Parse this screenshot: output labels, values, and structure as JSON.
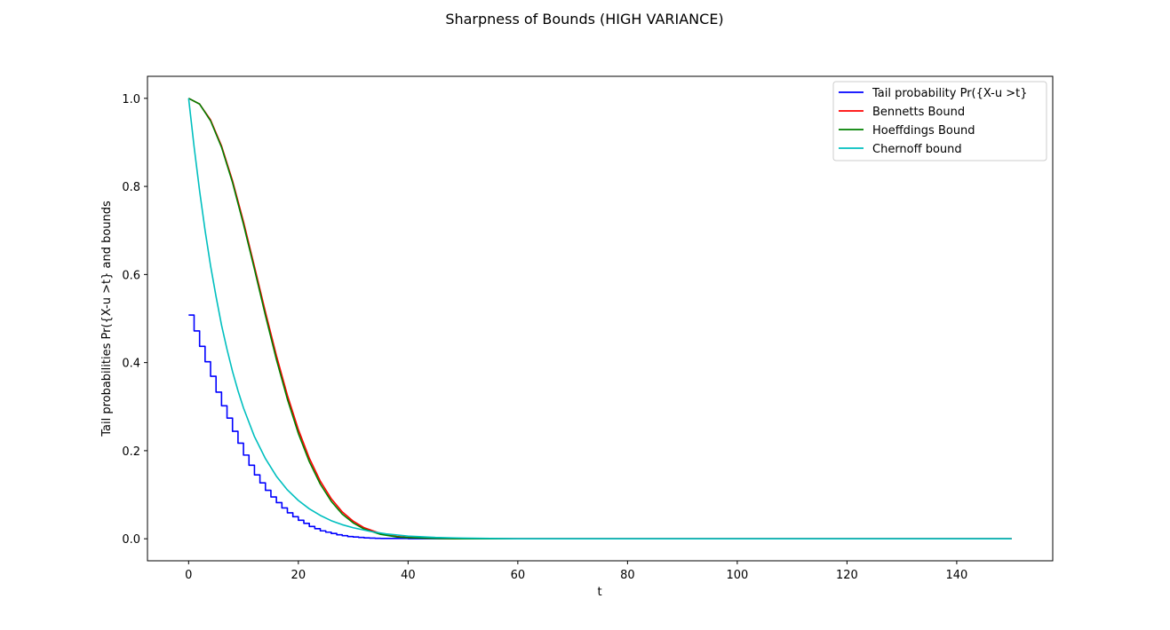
{
  "chart_data": {
    "type": "line",
    "title": "Sharpness of Bounds (HIGH VARIANCE)",
    "xlabel": "t",
    "ylabel": "Tail probabilities Pr({X-u >t} and bounds",
    "xlim": [
      -7.5,
      157.5
    ],
    "ylim": [
      -0.05,
      1.05
    ],
    "xticks": [
      0,
      20,
      40,
      60,
      80,
      100,
      120,
      140
    ],
    "yticks": [
      0.0,
      0.2,
      0.4,
      0.6,
      0.8,
      1.0
    ],
    "xtick_labels": [
      "0",
      "20",
      "40",
      "60",
      "80",
      "100",
      "120",
      "140"
    ],
    "ytick_labels": [
      "0.0",
      "0.2",
      "0.4",
      "0.6",
      "0.8",
      "1.0"
    ],
    "grid": false,
    "legend_position": "top-right",
    "series": [
      {
        "name": "Tail probability Pr({X-u >t}",
        "color": "#0000ff",
        "step": true,
        "x": [
          0,
          1,
          2,
          3,
          4,
          5,
          6,
          7,
          8,
          9,
          10,
          11,
          12,
          13,
          14,
          15,
          16,
          17,
          18,
          19,
          20,
          21,
          22,
          23,
          24,
          25,
          26,
          27,
          28,
          29,
          30,
          31,
          32,
          33,
          34,
          35,
          40,
          50,
          60,
          80,
          100,
          120,
          150
        ],
        "y": [
          0.508,
          0.472,
          0.437,
          0.402,
          0.369,
          0.333,
          0.302,
          0.274,
          0.244,
          0.217,
          0.19,
          0.167,
          0.145,
          0.127,
          0.11,
          0.095,
          0.082,
          0.07,
          0.059,
          0.05,
          0.042,
          0.035,
          0.028,
          0.023,
          0.018,
          0.015,
          0.012,
          0.009,
          0.007,
          0.005,
          0.004,
          0.003,
          0.002,
          0.0015,
          0.001,
          0.0008,
          0.0003,
          0.0,
          0.0,
          0.0,
          0.0,
          0.0,
          0.0
        ]
      },
      {
        "name": "Bennetts Bound",
        "color": "#ff0000",
        "step": false,
        "x": [
          0,
          2,
          4,
          6,
          8,
          10,
          12,
          14,
          16,
          18,
          20,
          22,
          24,
          26,
          28,
          30,
          32,
          35,
          38,
          40,
          45,
          50,
          60,
          80,
          100,
          120,
          150
        ],
        "y": [
          1.0,
          0.987,
          0.951,
          0.892,
          0.813,
          0.72,
          0.618,
          0.515,
          0.416,
          0.326,
          0.248,
          0.183,
          0.131,
          0.091,
          0.061,
          0.04,
          0.025,
          0.012,
          0.005,
          0.003,
          0.001,
          0.0,
          0.0,
          0.0,
          0.0,
          0.0,
          0.0
        ]
      },
      {
        "name": "Hoeffdings Bound",
        "color": "#008000",
        "step": false,
        "x": [
          0,
          2,
          4,
          6,
          8,
          10,
          12,
          14,
          16,
          18,
          20,
          22,
          24,
          26,
          28,
          30,
          32,
          35,
          38,
          40,
          45,
          50,
          60,
          80,
          100,
          120,
          150
        ],
        "y": [
          1.0,
          0.987,
          0.949,
          0.889,
          0.809,
          0.714,
          0.612,
          0.507,
          0.407,
          0.317,
          0.239,
          0.175,
          0.124,
          0.085,
          0.056,
          0.036,
          0.022,
          0.01,
          0.004,
          0.0025,
          0.0007,
          0.0,
          0.0,
          0.0,
          0.0,
          0.0,
          0.0
        ]
      },
      {
        "name": "Chernoff bound",
        "color": "#00bfbf",
        "step": false,
        "x": [
          0,
          1,
          2,
          3,
          4,
          5,
          6,
          7,
          8,
          9,
          10,
          12,
          14,
          16,
          18,
          20,
          22,
          24,
          26,
          28,
          30,
          33,
          36,
          40,
          45,
          50,
          60,
          80,
          100,
          120,
          150
        ],
        "y": [
          1.0,
          0.89,
          0.79,
          0.7,
          0.62,
          0.55,
          0.485,
          0.43,
          0.38,
          0.336,
          0.297,
          0.232,
          0.182,
          0.142,
          0.111,
          0.087,
          0.068,
          0.053,
          0.041,
          0.032,
          0.025,
          0.017,
          0.011,
          0.006,
          0.003,
          0.0015,
          0.0,
          0.0,
          0.0,
          0.0,
          0.0
        ]
      }
    ]
  }
}
